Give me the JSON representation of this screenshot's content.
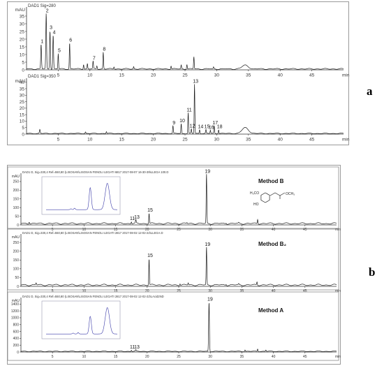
{
  "panels": {
    "a": {
      "label": "a"
    },
    "b": {
      "label": "b"
    }
  },
  "chart_data": [
    {
      "type": "line",
      "panel": "a",
      "signal": "DAD1 Sig=280",
      "ylabel": "mAU",
      "xlabel": "min",
      "ylim": [
        0,
        40
      ],
      "xlim": [
        0,
        50
      ],
      "yticks": [
        0,
        5,
        10,
        15,
        20,
        25,
        30,
        35
      ],
      "xticks": [
        5,
        10,
        15,
        20,
        25,
        30,
        35,
        40,
        45
      ],
      "baseline": 0.6,
      "peaks": [
        {
          "t": 2.3,
          "h": 16,
          "w": 0.06,
          "label": "1"
        },
        {
          "t": 3.1,
          "h": 36,
          "w": 0.06,
          "label": "2"
        },
        {
          "t": 3.7,
          "h": 25,
          "w": 0.06,
          "label": "3"
        },
        {
          "t": 4.2,
          "h": 22,
          "w": 0.06,
          "label": "4"
        },
        {
          "t": 5.0,
          "h": 10,
          "w": 0.05,
          "label": "5"
        },
        {
          "t": 6.8,
          "h": 17,
          "w": 0.05,
          "label": "6"
        },
        {
          "t": 10.5,
          "h": 5,
          "w": 0.05,
          "label": "7"
        },
        {
          "t": 12.1,
          "h": 11,
          "w": 0.05,
          "label": "8"
        },
        {
          "t": 9.0,
          "h": 3,
          "w": 0.05
        },
        {
          "t": 9.6,
          "h": 3.5,
          "w": 0.05
        },
        {
          "t": 11.1,
          "h": 2,
          "w": 0.05
        },
        {
          "t": 13.8,
          "h": 1.5,
          "w": 0.05
        },
        {
          "t": 16.9,
          "h": 1.5,
          "w": 0.05
        },
        {
          "t": 22.8,
          "h": 2,
          "w": 0.05
        },
        {
          "t": 24.4,
          "h": 2.5,
          "w": 0.05
        },
        {
          "t": 25.3,
          "h": 3,
          "w": 0.05
        },
        {
          "t": 26.4,
          "h": 8,
          "w": 0.05
        },
        {
          "t": 29.5,
          "h": 1.2,
          "w": 0.05
        },
        {
          "t": 34.5,
          "h": 2.4,
          "w": 0.5
        }
      ]
    },
    {
      "type": "line",
      "panel": "a",
      "signal": "DAD1 Sig=350",
      "ylabel": "mAU",
      "xlabel": "min",
      "ylim": [
        0,
        42
      ],
      "xlim": [
        0,
        50
      ],
      "yticks": [
        0,
        5,
        10,
        15,
        20,
        25,
        30,
        35,
        40
      ],
      "xticks": [
        5,
        10,
        15,
        20,
        25,
        30,
        35,
        40,
        45
      ],
      "baseline": 0.5,
      "peaks": [
        {
          "t": 2.1,
          "h": 3,
          "w": 0.06
        },
        {
          "t": 9.3,
          "h": 1.2,
          "w": 0.05
        },
        {
          "t": 12.6,
          "h": 1.5,
          "w": 0.05
        },
        {
          "t": 23.1,
          "h": 6,
          "w": 0.05,
          "label": "9"
        },
        {
          "t": 24.4,
          "h": 7.5,
          "w": 0.05,
          "label": "10"
        },
        {
          "t": 25.5,
          "h": 16,
          "w": 0.05,
          "label": "11"
        },
        {
          "t": 26.0,
          "h": 3.5,
          "w": 0.05,
          "label": "12"
        },
        {
          "t": 26.5,
          "h": 38,
          "w": 0.05,
          "label": "13"
        },
        {
          "t": 27.3,
          "h": 3,
          "w": 0.05,
          "label": "14"
        },
        {
          "t": 28.3,
          "h": 3,
          "w": 0.05,
          "label": "15"
        },
        {
          "t": 29.0,
          "h": 2.5,
          "w": 0.05,
          "label": "16"
        },
        {
          "t": 29.6,
          "h": 6,
          "w": 0.05,
          "label": "17"
        },
        {
          "t": 30.3,
          "h": 3,
          "w": 0.05,
          "label": "18"
        },
        {
          "t": 34.5,
          "h": 4.5,
          "w": 0.5
        }
      ]
    },
    {
      "type": "line",
      "panel": "b",
      "header": "DAD1 D, Sig=330,4 Ref=550,80 (LISOSAN\\LISOSAN FENOLI LEGATI 6817 2017-08-07 16-30-39\\LLEGA 100.D",
      "method": "Method B",
      "ylabel": "mAU",
      "xlabel": "min",
      "ylim": [
        0,
        290
      ],
      "xlim": [
        0,
        50
      ],
      "yticks": [
        0,
        50,
        100,
        150,
        200,
        250
      ],
      "xticks": [
        5,
        10,
        15,
        20,
        25,
        30,
        35,
        40,
        45
      ],
      "baseline": 8,
      "structure": {
        "substituent_1": "H₃CO",
        "substituent_2": "HO",
        "ester": "OCH₃"
      },
      "peaks": [
        {
          "t": 1.3,
          "h": 12,
          "w": 0.06
        },
        {
          "t": 17.5,
          "h": 12,
          "w": 0.05,
          "label": "11"
        },
        {
          "t": 18.2,
          "h": 20,
          "w": 0.05,
          "label": "13"
        },
        {
          "t": 20.3,
          "h": 60,
          "w": 0.05,
          "label": "15"
        },
        {
          "t": 26.3,
          "h": 5,
          "w": 0.05
        },
        {
          "t": 29.4,
          "h": 285,
          "w": 0.05,
          "label": "19"
        },
        {
          "t": 32.5,
          "h": 5,
          "w": 0.05
        },
        {
          "t": 34.5,
          "h": 4,
          "w": 0.05
        },
        {
          "t": 37.5,
          "h": 25,
          "w": 0.05
        }
      ]
    },
    {
      "type": "line",
      "panel": "b",
      "header": "DAD1 D, Sig=330,4 Ref=550,80 (LISOSAN\\LISOSAN FENOLI LEGATI 2817 2017-08-02 12-02-22\\LLEGA.D",
      "method": "Method B₂",
      "ylabel": "mAU",
      "xlabel": "min",
      "ylim": [
        0,
        290
      ],
      "xlim": [
        0,
        50
      ],
      "yticks": [
        0,
        50,
        100,
        150,
        200,
        250
      ],
      "xticks": [
        5,
        10,
        15,
        20,
        25,
        30,
        35,
        40,
        45
      ],
      "baseline": 8,
      "peaks": [
        {
          "t": 2.4,
          "h": 12,
          "w": 0.06
        },
        {
          "t": 20.3,
          "h": 150,
          "w": 0.05,
          "label": "15"
        },
        {
          "t": 25.2,
          "h": 10,
          "w": 0.05
        },
        {
          "t": 26.5,
          "h": 12,
          "w": 0.05
        },
        {
          "t": 29.4,
          "h": 215,
          "w": 0.05,
          "label": "19"
        },
        {
          "t": 32.5,
          "h": 6,
          "w": 0.05
        },
        {
          "t": 34.5,
          "h": 5,
          "w": 0.05
        },
        {
          "t": 37.4,
          "h": 18,
          "w": 0.05
        }
      ]
    },
    {
      "type": "line",
      "panel": "b",
      "header": "DAD1 D, Sig=330,4 Ref=550,80 (LISOSAN\\LISOSAN FENOLI LEGATI 2817 2017-08-02 12-02-22\\LAcid2ND",
      "method": "Method A",
      "ylabel": "mAU",
      "xlabel": "min",
      "ylim": [
        0,
        1550
      ],
      "xlim": [
        0,
        50
      ],
      "yticks": [
        0,
        200,
        400,
        600,
        800,
        1000,
        1200,
        1400
      ],
      "xticks": [
        5,
        10,
        15,
        20,
        25,
        30,
        35,
        40,
        45
      ],
      "baseline": 20,
      "peaks": [
        {
          "t": 17.5,
          "h": 40,
          "w": 0.05,
          "label": "11"
        },
        {
          "t": 18.2,
          "h": 40,
          "w": 0.05,
          "label": "13"
        },
        {
          "t": 29.8,
          "h": 1440,
          "w": 0.06,
          "label": "19"
        },
        {
          "t": 35.5,
          "h": 45,
          "w": 0.05
        },
        {
          "t": 37.5,
          "h": 70,
          "w": 0.05
        },
        {
          "t": 38.8,
          "h": 40,
          "w": 0.05
        }
      ]
    }
  ]
}
